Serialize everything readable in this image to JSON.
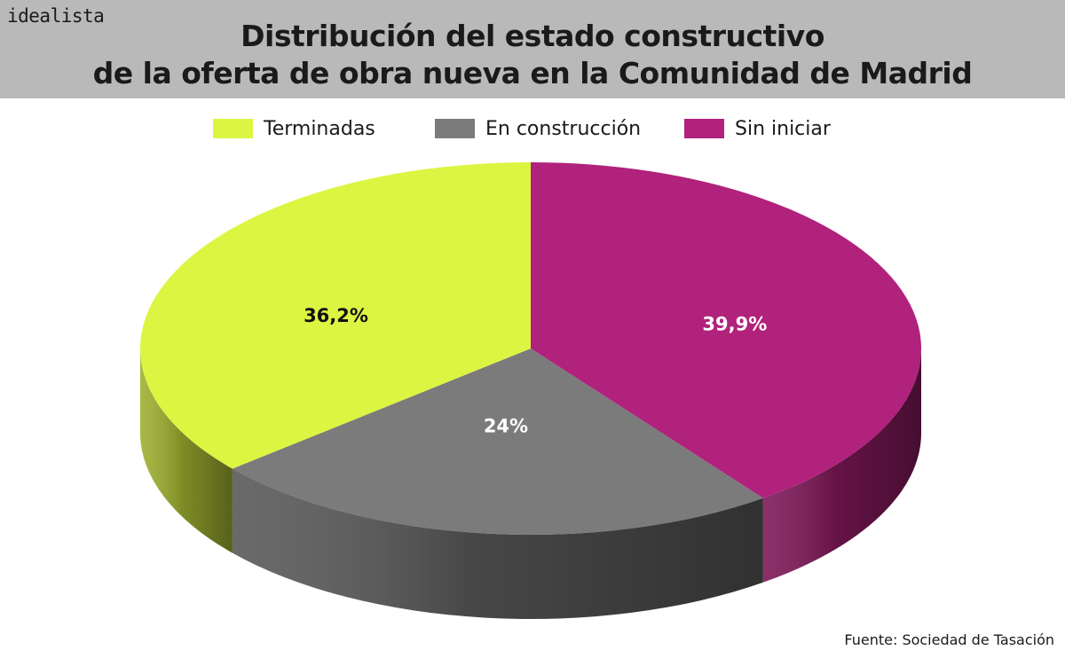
{
  "logo": "idealista",
  "title": {
    "line1": "Distribución del estado constructivo",
    "line2": "de la oferta de obra nueva en la Comunidad de Madrid"
  },
  "source": "Fuente: Sociedad de Tasación",
  "chart_data": {
    "type": "pie",
    "style": "3d",
    "legend_position": "top",
    "categories": [
      "Terminadas",
      "En construcción",
      "Sin iniciar"
    ],
    "values": [
      36.2,
      24,
      39.9
    ],
    "labels": [
      "36,2%",
      "24%",
      "39,9%"
    ],
    "colors": [
      "#dcf542",
      "#7b7b7b",
      "#b0227c"
    ],
    "label_colors": [
      "#111111",
      "#ffffff",
      "#ffffff"
    ]
  }
}
